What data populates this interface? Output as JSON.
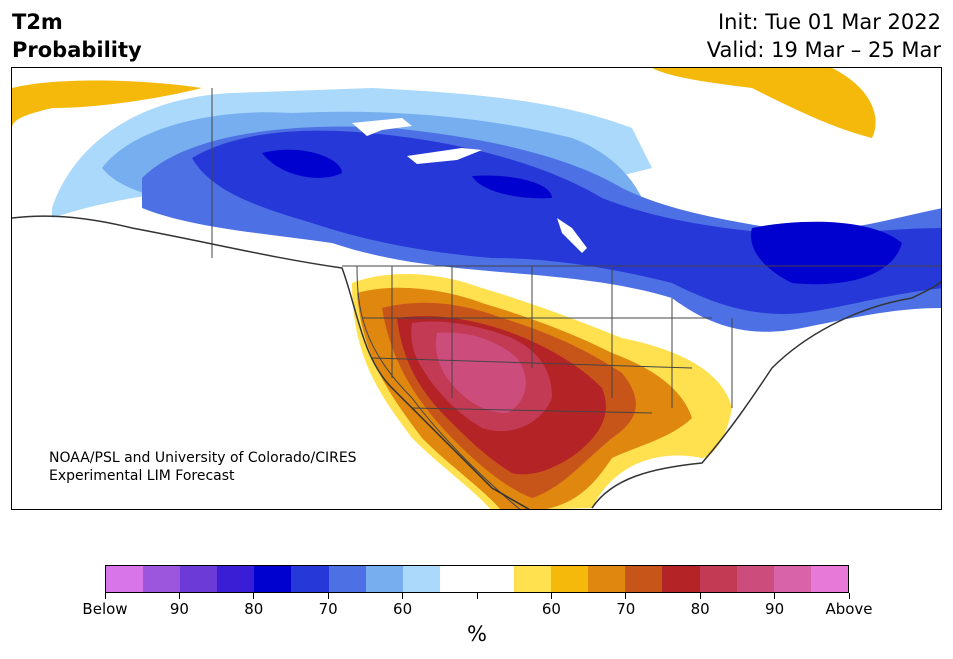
{
  "header": {
    "title_line1": "T2m",
    "title_line2": "Probability",
    "init": "Init: Tue 01 Mar 2022",
    "valid": "Valid: 19 Mar – 25 Mar"
  },
  "credit": {
    "line1": "NOAA/PSL and University of Colorado/CIRES",
    "line2": "Experimental LIM Forecast"
  },
  "colorbar": {
    "colors": [
      "#d775e9",
      "#9c55dd",
      "#6c3ad6",
      "#3a1ed6",
      "#0000cf",
      "#2738d8",
      "#4d71e4",
      "#76aef0",
      "#abd9fb",
      "#ffffff",
      "#ffffff",
      "#ffe14f",
      "#f4b90a",
      "#df870f",
      "#c75519",
      "#b42325",
      "#c33a55",
      "#cc4d7c",
      "#d963a8",
      "#e77ad9"
    ],
    "tick_labels": [
      "Below",
      "90",
      "80",
      "70",
      "60",
      "",
      "60",
      "70",
      "80",
      "90",
      "Above"
    ],
    "unit": "%"
  },
  "map": {
    "region": "North America",
    "below_normal_color": "#2738d8",
    "above_normal_color": "#b42325"
  }
}
